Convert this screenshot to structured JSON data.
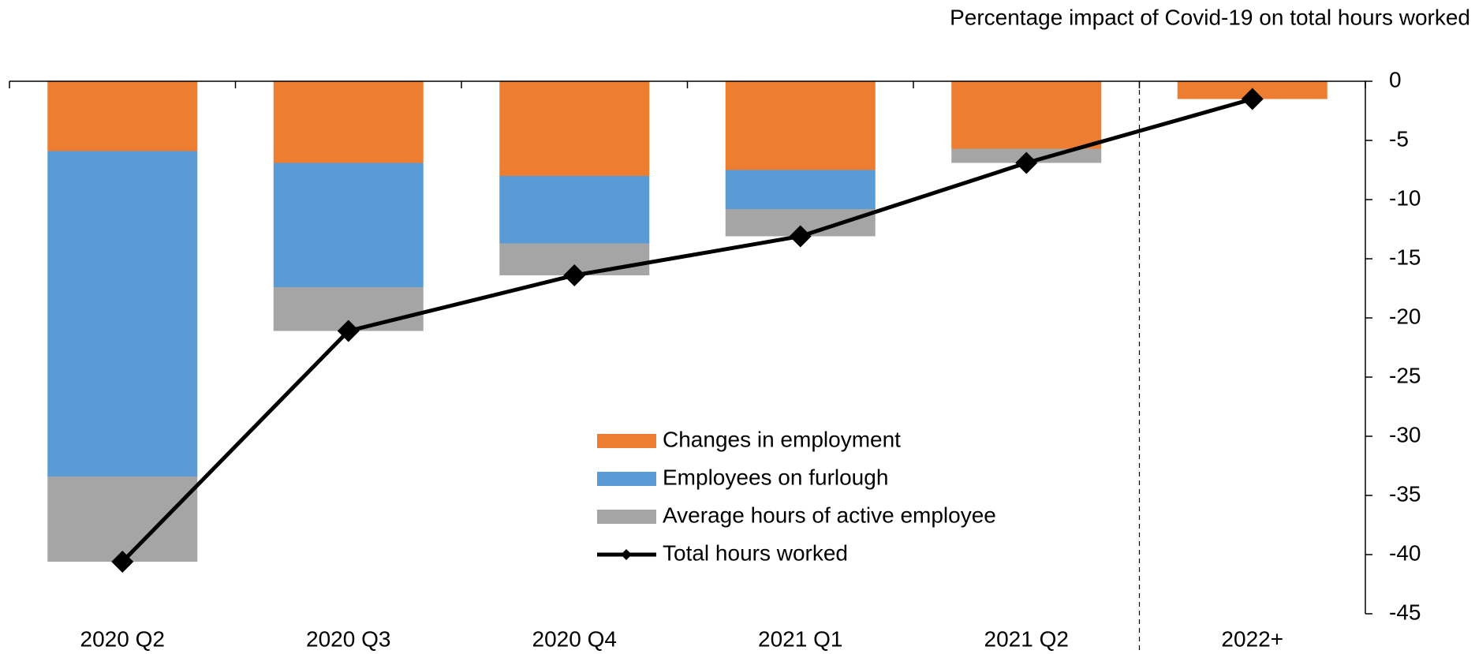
{
  "chart_data": {
    "type": "stacked_bar_line",
    "title": "Percentage impact of Covid-19 on total hours worked",
    "categories": [
      "2020 Q2",
      "2020 Q3",
      "2020 Q4",
      "2021 Q1",
      "2021 Q2",
      "2022+"
    ],
    "series": [
      {
        "name": "Changes in employment",
        "color": "#ED7D31",
        "type": "bar",
        "values": [
          -5.9,
          -6.9,
          -8.0,
          -7.5,
          -5.7,
          -1.5
        ]
      },
      {
        "name": "Employees on furlough",
        "color": "#5B9BD5",
        "type": "bar",
        "values": [
          -27.5,
          -10.5,
          -5.7,
          -3.3,
          0,
          0
        ]
      },
      {
        "name": "Average hours of active employee",
        "color": "#A5A5A5",
        "type": "bar",
        "values": [
          -7.2,
          -3.7,
          -2.7,
          -2.3,
          -1.2,
          0
        ]
      },
      {
        "name": "Total hours worked",
        "color": "#000000",
        "type": "line",
        "values": [
          -40.6,
          -21.1,
          -16.4,
          -13.1,
          -6.9,
          -1.5
        ]
      }
    ],
    "ylim": [
      0,
      -45
    ],
    "yticks": [
      0,
      -5,
      -10,
      -15,
      -20,
      -25,
      -30,
      -35,
      -40,
      -45
    ]
  }
}
